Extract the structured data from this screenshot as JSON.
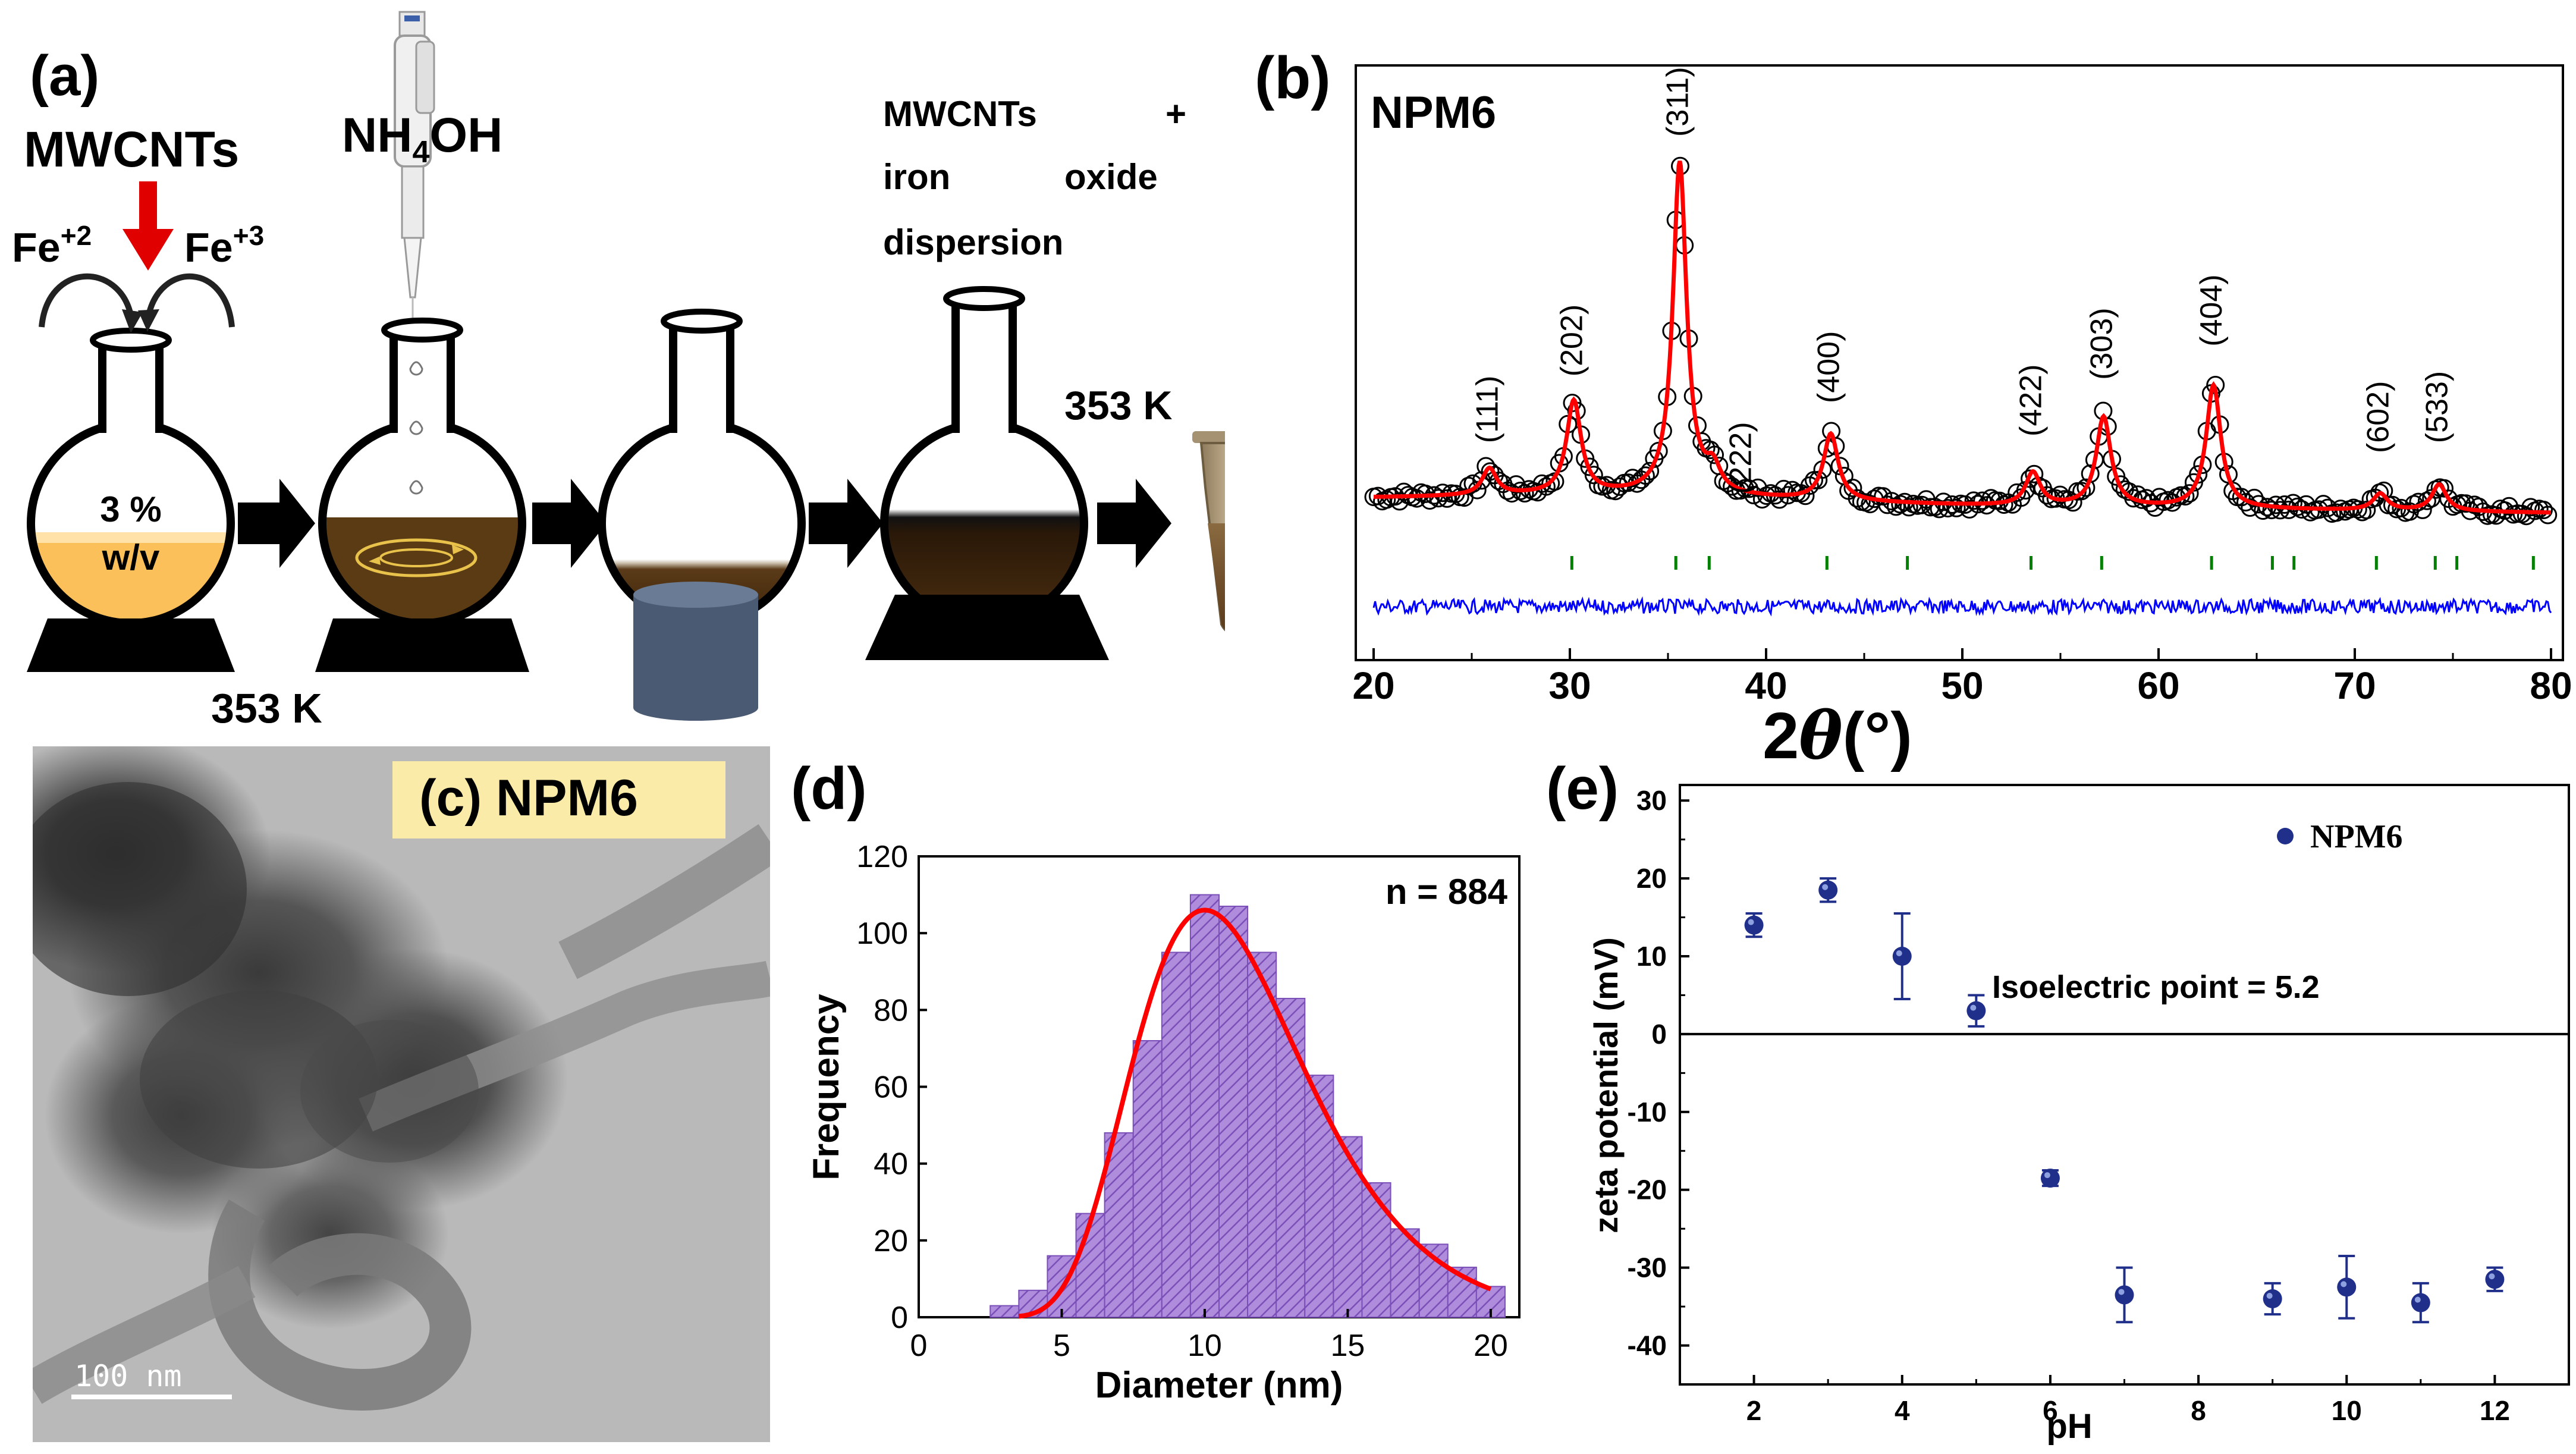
{
  "panel_a": {
    "label": "(a)",
    "reagent1": "MWCNTs",
    "fe2": "Fe+2",
    "fe3": "Fe+3",
    "concentration_line1": "3 %",
    "concentration_line2": "w/v",
    "temp_bottom": "353 K",
    "reagent2_main": "NH",
    "reagent2_sub": "4",
    "reagent2_end": "OH",
    "dispersion_line1": "MWCNTs",
    "dispersion_plus": "+",
    "dispersion_line2a": "iron",
    "dispersion_line2b": "oxide",
    "dispersion_line3": "dispersion",
    "temp_right": "353 K"
  },
  "panel_b": {
    "label": "(b)",
    "sample": "NPM6",
    "xlabel_theta": "θ",
    "xlabel_prefix": "2",
    "xlabel_suffix": "(°)",
    "colors": {
      "observed": "#000000",
      "fit": "#ff0000",
      "difference": "#0000ff",
      "ticks": "#008000"
    }
  },
  "panel_c": {
    "label": "(c) NPM6",
    "scale_bar": "100 nm"
  },
  "panel_d": {
    "label": "(d)",
    "n_annotation": "n = 884"
  },
  "panel_e": {
    "label": "(e)",
    "legend": "NPM6",
    "annotation": "Isoelectric point = 5.2"
  },
  "chart_data": [
    {
      "id": "xrd",
      "type": "line",
      "title": "NPM6",
      "xlabel": "2θ(°)",
      "ylabel": "",
      "xlim": [
        20,
        80
      ],
      "x_ticks": [
        20,
        30,
        40,
        50,
        60,
        70,
        80
      ],
      "peaks": [
        {
          "hkl": "(111)",
          "x": 25.9,
          "intensity": 0.08
        },
        {
          "hkl": "(202)",
          "x": 30.2,
          "intensity": 0.28
        },
        {
          "hkl": "(311)",
          "x": 35.6,
          "intensity": 1.0
        },
        {
          "hkl": "(222)",
          "x": 37.3,
          "intensity": 0.07
        },
        {
          "hkl": "(400)",
          "x": 43.3,
          "intensity": 0.2
        },
        {
          "hkl": "(422)",
          "x": 53.6,
          "intensity": 0.1
        },
        {
          "hkl": "(303)",
          "x": 57.2,
          "intensity": 0.27
        },
        {
          "hkl": "(404)",
          "x": 62.8,
          "intensity": 0.37
        },
        {
          "hkl": "(602)",
          "x": 71.3,
          "intensity": 0.05
        },
        {
          "hkl": "(533)",
          "x": 74.3,
          "intensity": 0.08
        }
      ],
      "bragg_ticks": [
        30.1,
        35.4,
        37.1,
        43.1,
        47.2,
        53.5,
        57.1,
        62.7,
        65.8,
        66.9,
        71.1,
        74.1,
        75.2,
        79.1
      ],
      "series": [
        {
          "name": "observed",
          "style": "open circles"
        },
        {
          "name": "fit",
          "style": "red line"
        },
        {
          "name": "difference",
          "style": "blue line"
        }
      ]
    },
    {
      "id": "histogram",
      "type": "bar",
      "xlabel": "Diameter  (nm)",
      "ylabel": "Frequency",
      "xlim": [
        0,
        21
      ],
      "ylim": [
        0,
        120
      ],
      "x_ticks": [
        0,
        5,
        10,
        15,
        20
      ],
      "y_ticks": [
        0,
        20,
        40,
        60,
        80,
        100,
        120
      ],
      "bin_width": 1,
      "bin_centers": [
        3,
        4,
        5,
        6,
        7,
        8,
        9,
        10,
        11,
        12,
        13,
        14,
        15,
        16,
        17,
        18,
        19,
        20
      ],
      "values": [
        3,
        7,
        16,
        27,
        48,
        72,
        95,
        110,
        107,
        95,
        83,
        63,
        47,
        35,
        23,
        19,
        13,
        8
      ],
      "fit": {
        "type": "lognormal",
        "peak_x": 10,
        "peak_y": 106,
        "color": "#ff0000"
      },
      "annotation": "n = 884"
    },
    {
      "id": "zeta",
      "type": "scatter",
      "xlabel": "pH",
      "ylabel": "zeta potential (mV)",
      "xlim": [
        1,
        13
      ],
      "ylim": [
        -45,
        32
      ],
      "x_ticks": [
        2,
        4,
        6,
        8,
        10,
        12
      ],
      "y_ticks": [
        -40,
        -30,
        -20,
        -10,
        0,
        10,
        20,
        30
      ],
      "points": [
        {
          "x": 2,
          "y": 14,
          "err": 1.5
        },
        {
          "x": 3,
          "y": 18.5,
          "err": 1.5
        },
        {
          "x": 4,
          "y": 10,
          "err": 5.5
        },
        {
          "x": 5,
          "y": 3,
          "err": 2
        },
        {
          "x": 6,
          "y": -18.5,
          "err": 1
        },
        {
          "x": 7,
          "y": -33.5,
          "err": 3.5
        },
        {
          "x": 9,
          "y": -34,
          "err": 2
        },
        {
          "x": 10,
          "y": -32.5,
          "err": 4
        },
        {
          "x": 11,
          "y": -34.5,
          "err": 2.5
        },
        {
          "x": 12,
          "y": -31.5,
          "err": 1.5
        }
      ],
      "legend": "NPM6",
      "annotation": "Isoelectric point = 5.2"
    }
  ]
}
